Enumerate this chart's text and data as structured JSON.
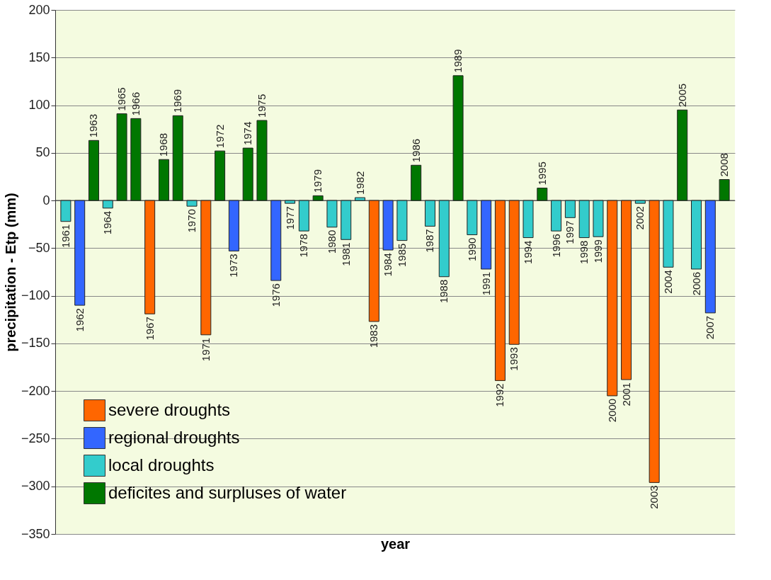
{
  "chart_data": {
    "type": "bar",
    "xlabel": "year",
    "ylabel": "precipitation - Etp (mm)",
    "categories": [
      "1961",
      "1962",
      "1963",
      "1964",
      "1965",
      "1966",
      "1967",
      "1968",
      "1969",
      "1970",
      "1971",
      "1972",
      "1973",
      "1974",
      "1975",
      "1976",
      "1977",
      "1978",
      "1979",
      "1980",
      "1981",
      "1982",
      "1983",
      "1984",
      "1985",
      "1986",
      "1987",
      "1988",
      "1989",
      "1990",
      "1991",
      "1992",
      "1993",
      "1994",
      "1995",
      "1996",
      "1997",
      "1998",
      "1999",
      "2000",
      "2001",
      "2002",
      "2003",
      "2004",
      "2005",
      "2006",
      "2007",
      "2008"
    ],
    "series": [
      {
        "name": "severe droughts",
        "color": "#ff6600",
        "values": [
          null,
          null,
          null,
          null,
          null,
          null,
          -119,
          null,
          null,
          null,
          -141,
          null,
          null,
          null,
          null,
          null,
          null,
          null,
          null,
          null,
          null,
          null,
          -127,
          null,
          null,
          null,
          null,
          null,
          null,
          null,
          null,
          -189,
          -151,
          null,
          null,
          null,
          null,
          null,
          null,
          -205,
          -188,
          null,
          -296,
          null,
          null,
          null,
          null,
          null
        ]
      },
      {
        "name": "regional droughts",
        "color": "#3366ff",
        "values": [
          null,
          -110,
          null,
          null,
          null,
          null,
          null,
          null,
          null,
          null,
          null,
          null,
          -53,
          null,
          null,
          -84,
          null,
          null,
          null,
          null,
          null,
          null,
          null,
          -52,
          null,
          null,
          null,
          null,
          null,
          null,
          -72,
          null,
          null,
          null,
          null,
          null,
          null,
          null,
          null,
          null,
          null,
          null,
          null,
          null,
          null,
          null,
          -118,
          null
        ]
      },
      {
        "name": "local droughts",
        "color": "#33cccc",
        "values": [
          -22,
          null,
          null,
          -8,
          null,
          null,
          null,
          null,
          null,
          -6,
          null,
          null,
          null,
          null,
          null,
          null,
          -3,
          -32,
          null,
          -28,
          -41,
          3,
          null,
          null,
          -42,
          null,
          -27,
          -80,
          null,
          -36,
          null,
          null,
          null,
          -39,
          null,
          -32,
          -18,
          -39,
          -38,
          null,
          null,
          -3,
          null,
          -70,
          null,
          -72,
          null,
          null
        ]
      },
      {
        "name": "deficites and surpluses of water",
        "color": "#007700",
        "values": [
          null,
          null,
          63,
          null,
          91,
          86,
          null,
          43,
          89,
          null,
          null,
          52,
          null,
          55,
          84,
          null,
          null,
          null,
          5,
          null,
          null,
          null,
          null,
          null,
          null,
          37,
          null,
          null,
          131,
          null,
          null,
          null,
          null,
          null,
          13,
          null,
          null,
          null,
          null,
          null,
          null,
          null,
          null,
          null,
          95,
          null,
          null,
          22
        ]
      }
    ],
    "ylim": [
      -350,
      200
    ],
    "yticks": [
      -350,
      -300,
      -250,
      -200,
      -150,
      -100,
      -50,
      0,
      50,
      100,
      150,
      200
    ],
    "grid": "y",
    "legend": "bottom left"
  }
}
